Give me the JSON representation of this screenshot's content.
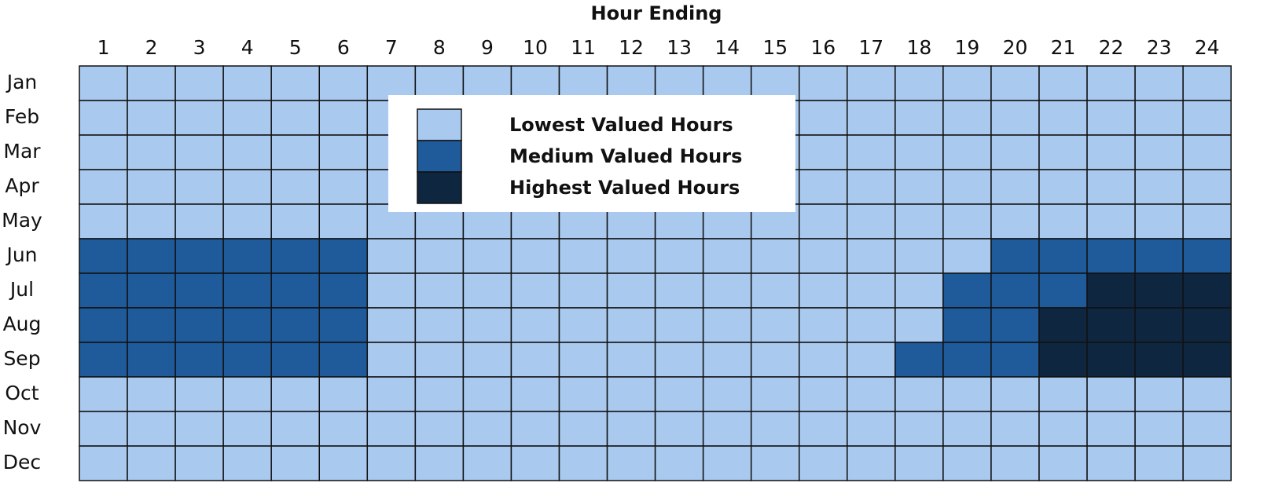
{
  "chart_data": {
    "type": "heatmap",
    "title": "Hour Ending",
    "x": [
      1,
      2,
      3,
      4,
      5,
      6,
      7,
      8,
      9,
      10,
      11,
      12,
      13,
      14,
      15,
      16,
      17,
      18,
      19,
      20,
      21,
      22,
      23,
      24
    ],
    "categories": [
      "Jan",
      "Feb",
      "Mar",
      "Apr",
      "May",
      "Jun",
      "Jul",
      "Aug",
      "Sep",
      "Oct",
      "Nov",
      "Dec"
    ],
    "legend": [
      {
        "name": "Lowest Valued Hours",
        "color": "#a9c9ee"
      },
      {
        "name": "Medium Valued Hours",
        "color": "#1f5a9a"
      },
      {
        "name": "Highest Valued Hours",
        "color": "#0e2640"
      }
    ],
    "values": [
      [
        0,
        0,
        0,
        0,
        0,
        0,
        0,
        0,
        0,
        0,
        0,
        0,
        0,
        0,
        0,
        0,
        0,
        0,
        0,
        0,
        0,
        0,
        0,
        0
      ],
      [
        0,
        0,
        0,
        0,
        0,
        0,
        0,
        0,
        0,
        0,
        0,
        0,
        0,
        0,
        0,
        0,
        0,
        0,
        0,
        0,
        0,
        0,
        0,
        0
      ],
      [
        0,
        0,
        0,
        0,
        0,
        0,
        0,
        0,
        0,
        0,
        0,
        0,
        0,
        0,
        0,
        0,
        0,
        0,
        0,
        0,
        0,
        0,
        0,
        0
      ],
      [
        0,
        0,
        0,
        0,
        0,
        0,
        0,
        0,
        0,
        0,
        0,
        0,
        0,
        0,
        0,
        0,
        0,
        0,
        0,
        0,
        0,
        0,
        0,
        0
      ],
      [
        0,
        0,
        0,
        0,
        0,
        0,
        0,
        0,
        0,
        0,
        0,
        0,
        0,
        0,
        0,
        0,
        0,
        0,
        0,
        0,
        0,
        0,
        0,
        0
      ],
      [
        1,
        1,
        1,
        1,
        1,
        1,
        0,
        0,
        0,
        0,
        0,
        0,
        0,
        0,
        0,
        0,
        0,
        0,
        0,
        1,
        1,
        1,
        1,
        1
      ],
      [
        1,
        1,
        1,
        1,
        1,
        1,
        0,
        0,
        0,
        0,
        0,
        0,
        0,
        0,
        0,
        0,
        0,
        0,
        1,
        1,
        1,
        2,
        2,
        2
      ],
      [
        1,
        1,
        1,
        1,
        1,
        1,
        0,
        0,
        0,
        0,
        0,
        0,
        0,
        0,
        0,
        0,
        0,
        0,
        1,
        1,
        2,
        2,
        2,
        2
      ],
      [
        1,
        1,
        1,
        1,
        1,
        1,
        0,
        0,
        0,
        0,
        0,
        0,
        0,
        0,
        0,
        0,
        0,
        1,
        1,
        1,
        2,
        2,
        2,
        2
      ],
      [
        0,
        0,
        0,
        0,
        0,
        0,
        0,
        0,
        0,
        0,
        0,
        0,
        0,
        0,
        0,
        0,
        0,
        0,
        0,
        0,
        0,
        0,
        0,
        0
      ],
      [
        0,
        0,
        0,
        0,
        0,
        0,
        0,
        0,
        0,
        0,
        0,
        0,
        0,
        0,
        0,
        0,
        0,
        0,
        0,
        0,
        0,
        0,
        0,
        0
      ],
      [
        0,
        0,
        0,
        0,
        0,
        0,
        0,
        0,
        0,
        0,
        0,
        0,
        0,
        0,
        0,
        0,
        0,
        0,
        0,
        0,
        0,
        0,
        0,
        0
      ]
    ]
  }
}
